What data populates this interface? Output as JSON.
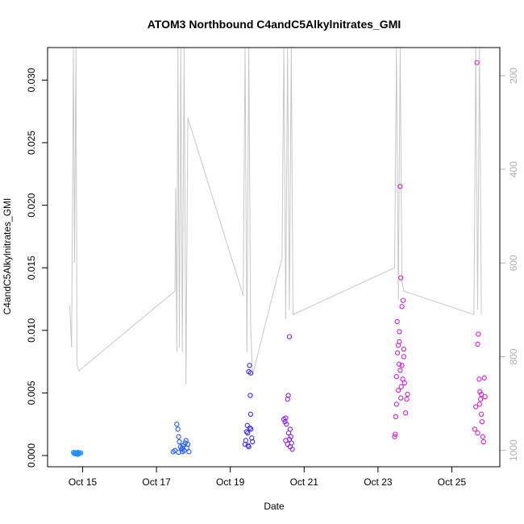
{
  "chart_data": {
    "type": "scatter",
    "title": "ATOM3 Northbound C4andC5Alkylnitrates_GMI",
    "xlabel": "Date",
    "ylabel": "C4andC5Alkylnitrates_GMI",
    "x_axis": {
      "unit": "day of October",
      "range": [
        14.05,
        26.3
      ],
      "ticks": [
        15,
        17,
        19,
        21,
        23,
        25
      ],
      "tick_labels": [
        "Oct 15",
        "Oct 17",
        "Oct 19",
        "Oct 21",
        "Oct 23",
        "Oct 25"
      ]
    },
    "y_axis": {
      "range": [
        -0.0009,
        0.0326
      ],
      "ticks": [
        0.0,
        0.005,
        0.01,
        0.015,
        0.02,
        0.025,
        0.03
      ],
      "tick_labels": [
        "0.000",
        "0.005",
        "0.010",
        "0.015",
        "0.020",
        "0.025",
        "0.030"
      ]
    },
    "right_axis": {
      "range": [
        1035,
        140
      ],
      "reversed": true,
      "ticks": [
        200,
        400,
        600,
        800,
        1000
      ],
      "tick_labels": [
        "200",
        "400",
        "600",
        "800",
        "1000"
      ],
      "color": "#b0b0b0"
    },
    "grid": false,
    "legend": "none",
    "series": [
      {
        "color": "#1E90FF",
        "points": [
          [
            14.75,
            0.00025
          ],
          [
            14.78,
            0.0002
          ],
          [
            14.8,
            0.00018
          ],
          [
            14.82,
            0.00022
          ],
          [
            14.85,
            0.0002
          ],
          [
            14.87,
            0.00025
          ],
          [
            14.9,
            0.00015
          ],
          [
            14.92,
            0.0002
          ],
          [
            14.95,
            0.00022
          ],
          [
            14.78,
            0.00015
          ],
          [
            14.83,
            0.00012
          ],
          [
            14.88,
            0.0001
          ]
        ]
      },
      {
        "color": "#1E5CFF",
        "points": [
          [
            17.45,
            0.0003
          ],
          [
            17.5,
            0.0004
          ],
          [
            17.55,
            0.0025
          ],
          [
            17.58,
            0.0021
          ],
          [
            17.6,
            0.0015
          ],
          [
            17.62,
            0.0011
          ],
          [
            17.65,
            0.0007
          ],
          [
            17.68,
            0.0005
          ],
          [
            17.7,
            0.0003
          ],
          [
            17.72,
            0.0008
          ],
          [
            17.75,
            0.0004
          ],
          [
            17.78,
            0.001
          ],
          [
            17.8,
            0.0012
          ],
          [
            17.82,
            0.0006
          ],
          [
            17.85,
            0.0009
          ],
          [
            17.88,
            0.0003
          ],
          [
            17.6,
            0.00025
          ],
          [
            17.7,
            0.0006
          ]
        ]
      },
      {
        "color": "#3A28F0",
        "points": [
          [
            19.4,
            0.0009
          ],
          [
            19.42,
            0.0012
          ],
          [
            19.44,
            0.0019
          ],
          [
            19.46,
            0.0024
          ],
          [
            19.48,
            0.0008
          ],
          [
            19.5,
            0.0067
          ],
          [
            19.52,
            0.0072
          ],
          [
            19.54,
            0.0048
          ],
          [
            19.55,
            0.0033
          ],
          [
            19.56,
            0.0021
          ],
          [
            19.58,
            0.0014
          ],
          [
            19.6,
            0.0011
          ],
          [
            19.47,
            0.0018
          ],
          [
            19.5,
            0.0007
          ],
          [
            19.53,
            0.0022
          ],
          [
            19.55,
            0.0066
          ]
        ]
      },
      {
        "color": "#8A1FE8",
        "points": [
          [
            20.45,
            0.0029
          ],
          [
            20.48,
            0.0027
          ],
          [
            20.5,
            0.003
          ],
          [
            20.52,
            0.0025
          ],
          [
            20.55,
            0.0045
          ],
          [
            20.57,
            0.0048
          ],
          [
            20.6,
            0.0095
          ],
          [
            20.62,
            0.0021
          ],
          [
            20.64,
            0.0015
          ],
          [
            20.66,
            0.001
          ],
          [
            20.68,
            0.0005
          ],
          [
            20.5,
            0.0012
          ],
          [
            20.55,
            0.0009
          ],
          [
            20.58,
            0.0018
          ],
          [
            20.6,
            0.0013
          ],
          [
            20.62,
            0.0007
          ]
        ]
      },
      {
        "color": "#D01CE0",
        "points": [
          [
            23.45,
            0.0015
          ],
          [
            23.48,
            0.0031
          ],
          [
            23.5,
            0.0041
          ],
          [
            23.52,
            0.0107
          ],
          [
            23.55,
            0.0088
          ],
          [
            23.58,
            0.0099
          ],
          [
            23.6,
            0.0215
          ],
          [
            23.62,
            0.0142
          ],
          [
            23.65,
            0.0119
          ],
          [
            23.68,
            0.0124
          ],
          [
            23.7,
            0.0085
          ],
          [
            23.72,
            0.0058
          ],
          [
            23.75,
            0.0034
          ],
          [
            23.78,
            0.0045
          ],
          [
            23.8,
            0.0049
          ],
          [
            23.5,
            0.0063
          ],
          [
            23.55,
            0.0052
          ],
          [
            23.6,
            0.0068
          ],
          [
            23.65,
            0.0072
          ],
          [
            23.7,
            0.0079
          ],
          [
            23.53,
            0.0082
          ],
          [
            23.58,
            0.0091
          ],
          [
            23.62,
            0.0046
          ],
          [
            23.67,
            0.0061
          ],
          [
            23.47,
            0.0017
          ],
          [
            23.57,
            0.0073
          ],
          [
            23.63,
            0.0055
          ]
        ]
      },
      {
        "color": "#E41AD8",
        "points": [
          [
            25.62,
            0.0021
          ],
          [
            25.65,
            0.0039
          ],
          [
            25.68,
            0.0314
          ],
          [
            25.7,
            0.0089
          ],
          [
            25.72,
            0.0097
          ],
          [
            25.74,
            0.0061
          ],
          [
            25.76,
            0.0051
          ],
          [
            25.78,
            0.0045
          ],
          [
            25.8,
            0.0033
          ],
          [
            25.82,
            0.0027
          ],
          [
            25.84,
            0.0015
          ],
          [
            25.86,
            0.0011
          ],
          [
            25.88,
            0.0062
          ],
          [
            25.9,
            0.0047
          ],
          [
            25.75,
            0.0041
          ],
          [
            25.8,
            0.0049
          ],
          [
            25.7,
            0.0018
          ]
        ]
      }
    ],
    "altitude_trace": {
      "color": "#c8c8c8",
      "points": [
        [
          14.65,
          690
        ],
        [
          14.7,
          780
        ],
        [
          14.75,
          140
        ],
        [
          14.78,
          600
        ],
        [
          14.82,
          140
        ],
        [
          14.85,
          820
        ],
        [
          14.9,
          830
        ],
        [
          17.5,
          660
        ],
        [
          17.52,
          440
        ],
        [
          17.55,
          790
        ],
        [
          17.58,
          140
        ],
        [
          17.62,
          780
        ],
        [
          17.66,
          140
        ],
        [
          17.7,
          790
        ],
        [
          17.75,
          140
        ],
        [
          17.8,
          860
        ],
        [
          17.85,
          290
        ],
        [
          19.35,
          670
        ],
        [
          19.4,
          140
        ],
        [
          19.45,
          790
        ],
        [
          19.5,
          140
        ],
        [
          19.55,
          730
        ],
        [
          19.6,
          840
        ],
        [
          20.4,
          590
        ],
        [
          20.45,
          140
        ],
        [
          20.5,
          720
        ],
        [
          20.55,
          140
        ],
        [
          20.6,
          700
        ],
        [
          20.65,
          140
        ],
        [
          20.7,
          710
        ],
        [
          23.45,
          610
        ],
        [
          23.5,
          140
        ],
        [
          23.55,
          680
        ],
        [
          23.6,
          140
        ],
        [
          23.65,
          640
        ],
        [
          23.7,
          660
        ],
        [
          25.6,
          710
        ],
        [
          25.65,
          140
        ],
        [
          25.7,
          700
        ],
        [
          25.75,
          140
        ],
        [
          25.8,
          710
        ]
      ]
    }
  }
}
